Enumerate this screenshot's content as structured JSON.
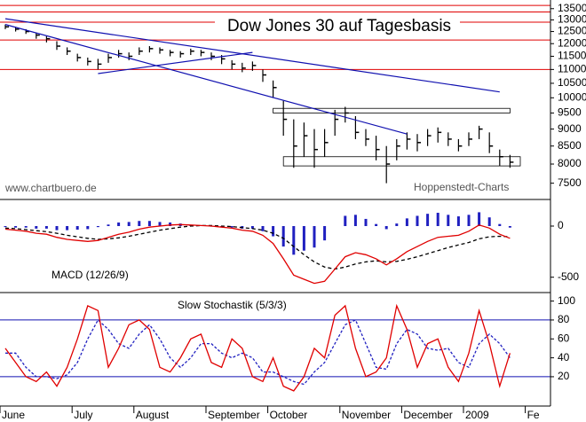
{
  "chart_data": [
    {
      "type": "ohlc",
      "title": "Dow Jones 30 auf Tagesbasis",
      "annotations": [
        "www.chartbuero.de",
        "Hoppenstedt-Charts"
      ],
      "close": [
        12700,
        12600,
        12500,
        12350,
        12200,
        11900,
        11700,
        11450,
        11300,
        11200,
        11450,
        11600,
        11500,
        11700,
        11800,
        11750,
        11650,
        11600,
        11700,
        11650,
        11500,
        11400,
        11200,
        11050,
        11150,
        10800,
        10350,
        9300,
        8500,
        8800,
        8400,
        8600,
        9300,
        9500,
        8900,
        8700,
        8400,
        8000,
        8500,
        8700,
        8600,
        8800,
        8900,
        8700,
        8500,
        8700,
        9000,
        8500,
        8200,
        8050
      ],
      "high": [
        12800,
        12700,
        12600,
        12450,
        12300,
        12100,
        11850,
        11600,
        11450,
        11400,
        11600,
        11750,
        11650,
        11850,
        11900,
        11850,
        11750,
        11700,
        11800,
        11750,
        11650,
        11550,
        11350,
        11250,
        11300,
        11000,
        10600,
        9900,
        9300,
        9200,
        9000,
        9000,
        9600,
        9700,
        9400,
        9000,
        8800,
        8500,
        8700,
        8900,
        8850,
        9000,
        9050,
        8900,
        8700,
        8900,
        9100,
        8900,
        8400,
        8250
      ],
      "low": [
        12600,
        12500,
        12400,
        12200,
        12050,
        11750,
        11550,
        11300,
        11150,
        11000,
        11250,
        11450,
        11350,
        11550,
        11650,
        11600,
        11500,
        11450,
        11550,
        11500,
        11350,
        11200,
        11000,
        10900,
        10950,
        10550,
        10000,
        8800,
        7900,
        8200,
        7900,
        8200,
        8800,
        9200,
        8700,
        8500,
        8100,
        7500,
        8100,
        8400,
        8350,
        8500,
        8600,
        8500,
        8350,
        8500,
        8700,
        8300,
        7950,
        7900
      ],
      "color": "#000000",
      "log_scale": true,
      "ylim": [
        7100,
        13900
      ],
      "yticks": [
        7500,
        8000,
        8500,
        9000,
        9500,
        10000,
        10500,
        11000,
        11500,
        12000,
        12500,
        13000,
        13500
      ],
      "horizontal_lines": {
        "color": "#e00000",
        "values": [
          13650,
          13350,
          12900,
          12150,
          11000
        ]
      },
      "trend_lines": {
        "color": "#1010b0",
        "lines": [
          {
            "x": [
              0,
              48
            ],
            "y": [
              13050,
              10200
            ]
          },
          {
            "x": [
              9,
              24
            ],
            "y": [
              10850,
              11650
            ]
          },
          {
            "x": [
              0,
              39
            ],
            "y": [
              12800,
              8850
            ]
          }
        ]
      },
      "boxes": {
        "color": "#000000",
        "items": [
          {
            "x": [
              26,
              49
            ],
            "y": [
              9500,
              9650
            ]
          },
          {
            "x": [
              27,
              50
            ],
            "y": [
              7950,
              8200
            ]
          }
        ]
      }
    },
    {
      "type": "macd",
      "title": "MACD (12/26/9)",
      "macd": {
        "color": "#e00000",
        "values": [
          -30,
          -40,
          -50,
          -70,
          -80,
          -110,
          -130,
          -140,
          -150,
          -140,
          -110,
          -80,
          -60,
          -30,
          -10,
          0,
          10,
          15,
          10,
          5,
          0,
          -10,
          -20,
          -40,
          -50,
          -90,
          -170,
          -320,
          -480,
          -520,
          -560,
          -540,
          -420,
          -300,
          -260,
          -280,
          -320,
          -380,
          -320,
          -250,
          -200,
          -150,
          -110,
          -100,
          -90,
          -50,
          10,
          -20,
          -80,
          -120
        ]
      },
      "signal": {
        "color": "#000000",
        "values": [
          -20,
          -25,
          -35,
          -45,
          -55,
          -70,
          -90,
          -105,
          -120,
          -130,
          -125,
          -115,
          -100,
          -80,
          -60,
          -40,
          -25,
          -10,
          0,
          5,
          5,
          0,
          -5,
          -15,
          -25,
          -40,
          -70,
          -120,
          -200,
          -280,
          -350,
          -400,
          -420,
          -400,
          -370,
          -350,
          -340,
          -350,
          -345,
          -325,
          -300,
          -270,
          -240,
          -210,
          -185,
          -160,
          -125,
          -105,
          -100,
          -105
        ]
      },
      "histogram": {
        "color": "#2020c0",
        "values": [
          -10,
          -15,
          -15,
          -25,
          -25,
          -40,
          -40,
          -35,
          -30,
          -10,
          15,
          35,
          40,
          50,
          50,
          40,
          35,
          25,
          10,
          0,
          -5,
          -10,
          -15,
          -25,
          -25,
          -50,
          -100,
          -200,
          -280,
          -240,
          -210,
          -140,
          0,
          100,
          110,
          70,
          20,
          -30,
          25,
          75,
          100,
          120,
          130,
          110,
          95,
          110,
          135,
          85,
          20,
          -15
        ]
      },
      "ylim": [
        -650,
        260
      ],
      "yticks": [
        -500,
        0
      ]
    },
    {
      "type": "stochastic",
      "title": "Slow Stochastik (5/3/3)",
      "categories": [
        "June",
        null,
        null,
        null,
        null,
        null,
        null,
        "July",
        null,
        null,
        null,
        null,
        null,
        "August",
        null,
        null,
        null,
        null,
        null,
        null,
        "September",
        null,
        null,
        null,
        null,
        null,
        "October",
        null,
        null,
        null,
        null,
        null,
        null,
        "November",
        null,
        null,
        null,
        null,
        null,
        "December",
        null,
        null,
        null,
        null,
        null,
        "2009",
        null,
        null,
        null,
        null,
        null,
        "Fe"
      ],
      "k": {
        "color": "#e00000",
        "values": [
          50,
          35,
          20,
          15,
          25,
          10,
          30,
          60,
          95,
          90,
          30,
          50,
          75,
          80,
          70,
          30,
          25,
          40,
          60,
          65,
          35,
          30,
          60,
          50,
          20,
          15,
          40,
          10,
          5,
          20,
          50,
          40,
          85,
          95,
          50,
          20,
          25,
          40,
          95,
          70,
          30,
          55,
          60,
          30,
          15,
          45,
          90,
          55,
          10,
          45,
          null,
          null
        ]
      },
      "d": {
        "color": "#2020c0",
        "values": [
          45,
          45,
          30,
          20,
          20,
          18,
          22,
          35,
          60,
          80,
          70,
          55,
          50,
          65,
          75,
          60,
          40,
          30,
          40,
          55,
          55,
          45,
          40,
          45,
          40,
          25,
          25,
          20,
          15,
          12,
          25,
          35,
          55,
          75,
          80,
          55,
          30,
          28,
          55,
          70,
          65,
          50,
          48,
          50,
          35,
          30,
          55,
          65,
          55,
          40,
          null,
          null
        ]
      },
      "levels": {
        "color": "#1010b0",
        "values": [
          20,
          80
        ]
      },
      "ylim": [
        -11,
        109
      ],
      "yticks": [
        20,
        40,
        60,
        80,
        100
      ]
    }
  ]
}
